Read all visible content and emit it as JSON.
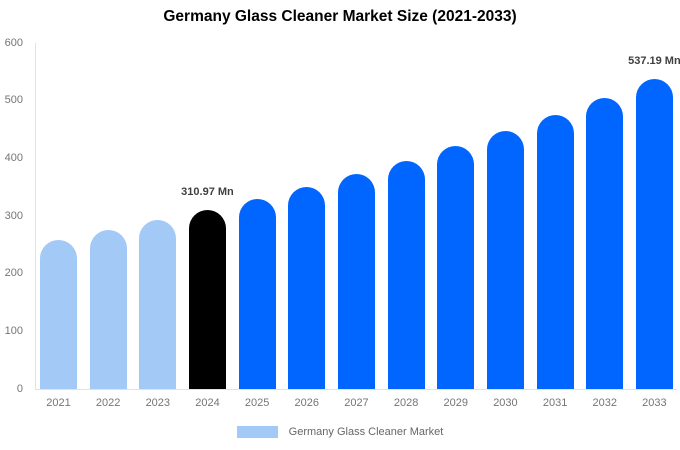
{
  "title": "Germany Glass Cleaner Market Size (2021-2033)",
  "legend": {
    "label": "Germany Glass Cleaner Market",
    "swatch_color": "#a3c9f7"
  },
  "colors": {
    "light": "#a3c9f7",
    "dark": "#000000",
    "blue": "#0066ff"
  },
  "axis": {
    "line_color": "#e2e2e2",
    "tick_text_color": "#757575",
    "value_label_color": "#404040"
  },
  "chart_data": {
    "type": "bar",
    "title": "Germany Glass Cleaner Market Size (2021-2033)",
    "unit": "Mn",
    "categories": [
      "2021",
      "2022",
      "2023",
      "2024",
      "2025",
      "2026",
      "2027",
      "2028",
      "2029",
      "2030",
      "2031",
      "2032",
      "2033"
    ],
    "values": [
      259,
      275,
      293,
      310.97,
      330,
      351,
      373,
      396,
      421,
      448,
      476,
      505,
      537.19
    ],
    "bar_colors": [
      "light",
      "light",
      "light",
      "dark",
      "blue",
      "blue",
      "blue",
      "blue",
      "blue",
      "blue",
      "blue",
      "blue",
      "blue"
    ],
    "annotations": [
      {
        "category": "2024",
        "text": "310.97 Mn"
      },
      {
        "category": "2033",
        "text": "537.19 Mn"
      }
    ],
    "xlabel": "",
    "ylabel": "",
    "ylim": [
      0,
      600
    ],
    "yticks": [
      0,
      100,
      200,
      300,
      400,
      500,
      600
    ],
    "grid": false,
    "legend_position": "bottom",
    "legend_entries": [
      "Germany Glass Cleaner Market"
    ]
  }
}
